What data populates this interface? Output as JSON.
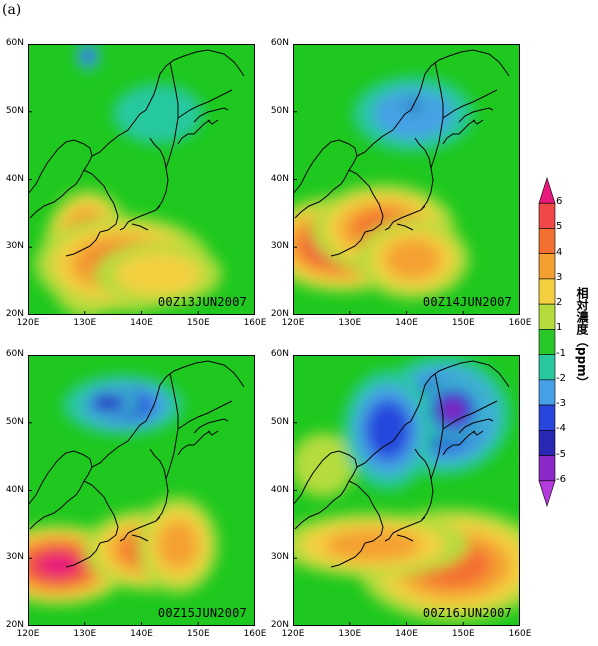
{
  "figure_label": "(a)",
  "panels": [
    {
      "stamp": "00Z13JUN2007",
      "hot": [
        [
          60,
          210,
          28,
          40,
          6
        ],
        [
          95,
          220,
          55,
          30,
          4
        ],
        [
          130,
          230,
          40,
          20,
          2
        ]
      ],
      "cold": [
        [
          60,
          12,
          8,
          10,
          3
        ],
        [
          130,
          70,
          30,
          20,
          1
        ]
      ]
    },
    {
      "stamp": "00Z14JUN2007",
      "hot": [
        [
          50,
          200,
          50,
          30,
          6
        ],
        [
          90,
          185,
          45,
          28,
          4
        ],
        [
          120,
          215,
          35,
          25,
          3
        ]
      ],
      "cold": [
        [
          120,
          70,
          40,
          25,
          2
        ],
        [
          120,
          62,
          8,
          6,
          4
        ]
      ]
    },
    {
      "stamp": "00Z15JUN2007",
      "hot": [
        [
          30,
          210,
          45,
          25,
          6
        ],
        [
          120,
          195,
          40,
          25,
          4
        ],
        [
          150,
          190,
          25,
          30,
          3
        ]
      ],
      "cold": [
        [
          95,
          50,
          40,
          20,
          3
        ],
        [
          80,
          48,
          20,
          10,
          4
        ]
      ]
    },
    {
      "stamp": "00Z16JUN2007",
      "hot": [
        [
          160,
          210,
          60,
          35,
          4
        ],
        [
          80,
          190,
          60,
          20,
          3
        ],
        [
          30,
          110,
          20,
          20,
          1
        ]
      ],
      "cold": [
        [
          150,
          60,
          45,
          40,
          4
        ],
        [
          160,
          55,
          22,
          20,
          5
        ],
        [
          95,
          75,
          30,
          40,
          3
        ]
      ]
    }
  ],
  "axes": {
    "lat_labels": [
      "60N",
      "50N",
      "40N",
      "30N",
      "20N"
    ],
    "lon_labels": [
      "120E",
      "130E",
      "140E",
      "150E",
      "160E"
    ],
    "lat_range": [
      20,
      60
    ],
    "lon_range": [
      120,
      160
    ]
  },
  "colorbar": {
    "title": "相対濃度（ppm）",
    "labels": [
      "6",
      "5",
      "4",
      "3",
      "2",
      "1",
      "-1",
      "-2",
      "-3",
      "-4",
      "-5",
      "-6"
    ],
    "colors": [
      "#e8187c",
      "#f04848",
      "#f47030",
      "#f4a030",
      "#f4d040",
      "#b4dc3c",
      "#28c828",
      "#28c8a0",
      "#46a0e6",
      "#2846dc",
      "#2828b4",
      "#8c28c8",
      "#b43cdc"
    ]
  },
  "background_color": "#1ec81e"
}
